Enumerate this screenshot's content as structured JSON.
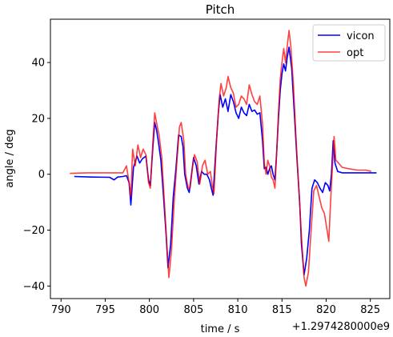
{
  "chart_data": {
    "type": "line",
    "title": "Pitch",
    "xlabel": "time / s",
    "ylabel": "angle / deg",
    "offset_label": "+1.2974280000e9",
    "xlim": [
      788.8,
      827.2
    ],
    "ylim": [
      -44.5,
      55.5
    ],
    "xticks": [
      790,
      795,
      800,
      805,
      810,
      815,
      820,
      825
    ],
    "yticks": [
      -40,
      -20,
      0,
      20,
      40
    ],
    "grid": false,
    "legend_position": "top-right",
    "series": [
      {
        "name": "vicon",
        "color": "#0000ff",
        "points": [
          [
            791.5,
            -0.8
          ],
          [
            793.5,
            -1.0
          ],
          [
            795.5,
            -1.1
          ],
          [
            796.0,
            -2.0
          ],
          [
            796.4,
            -1.0
          ],
          [
            797.0,
            -0.8
          ],
          [
            797.4,
            -0.5
          ],
          [
            797.7,
            -3.0
          ],
          [
            797.9,
            -11.0
          ],
          [
            798.2,
            2.5
          ],
          [
            798.6,
            6.5
          ],
          [
            798.9,
            4.0
          ],
          [
            799.2,
            5.5
          ],
          [
            799.6,
            6.5
          ],
          [
            799.9,
            -2.0
          ],
          [
            800.1,
            -4.0
          ],
          [
            800.4,
            10.0
          ],
          [
            800.6,
            18.5
          ],
          [
            800.8,
            16.0
          ],
          [
            801.0,
            12.0
          ],
          [
            801.3,
            5.0
          ],
          [
            801.6,
            -8.0
          ],
          [
            801.9,
            -22.0
          ],
          [
            802.1,
            -33.5
          ],
          [
            802.4,
            -25.0
          ],
          [
            802.7,
            -8.0
          ],
          [
            803.0,
            2.0
          ],
          [
            803.3,
            14.0
          ],
          [
            803.6,
            13.5
          ],
          [
            803.8,
            10.0
          ],
          [
            804.0,
            0.0
          ],
          [
            804.3,
            -5.0
          ],
          [
            804.5,
            -6.5
          ],
          [
            804.8,
            1.0
          ],
          [
            805.0,
            6.0
          ],
          [
            805.3,
            3.0
          ],
          [
            805.6,
            -3.5
          ],
          [
            805.9,
            1.0
          ],
          [
            806.2,
            0.0
          ],
          [
            806.5,
            0.0
          ],
          [
            806.8,
            -2.0
          ],
          [
            807.0,
            -5.0
          ],
          [
            807.2,
            -7.5
          ],
          [
            807.5,
            8.0
          ],
          [
            807.8,
            22.0
          ],
          [
            808.0,
            28.5
          ],
          [
            808.3,
            24.0
          ],
          [
            808.6,
            27.0
          ],
          [
            808.9,
            22.5
          ],
          [
            809.2,
            28.5
          ],
          [
            809.5,
            26.0
          ],
          [
            809.8,
            22.0
          ],
          [
            810.1,
            20.0
          ],
          [
            810.4,
            24.0
          ],
          [
            810.7,
            22.0
          ],
          [
            811.0,
            21.0
          ],
          [
            811.3,
            25.0
          ],
          [
            811.6,
            22.5
          ],
          [
            811.9,
            23.0
          ],
          [
            812.2,
            21.5
          ],
          [
            812.5,
            22.0
          ],
          [
            812.8,
            12.0
          ],
          [
            813.0,
            2.0
          ],
          [
            813.2,
            2.5
          ],
          [
            813.4,
            0.0
          ],
          [
            813.6,
            2.0
          ],
          [
            813.8,
            3.0
          ],
          [
            814.0,
            0.0
          ],
          [
            814.2,
            -2.0
          ],
          [
            814.4,
            8.0
          ],
          [
            814.6,
            20.0
          ],
          [
            814.8,
            30.0
          ],
          [
            815.0,
            36.0
          ],
          [
            815.2,
            39.5
          ],
          [
            815.4,
            37.0
          ],
          [
            815.6,
            42.0
          ],
          [
            815.8,
            45.5
          ],
          [
            816.1,
            38.0
          ],
          [
            816.4,
            22.0
          ],
          [
            816.7,
            5.0
          ],
          [
            817.0,
            -10.0
          ],
          [
            817.2,
            -25.0
          ],
          [
            817.5,
            -36.0
          ],
          [
            817.8,
            -30.0
          ],
          [
            818.1,
            -20.0
          ],
          [
            818.4,
            -5.0
          ],
          [
            818.7,
            -2.0
          ],
          [
            819.0,
            -3.0
          ],
          [
            819.3,
            -5.0
          ],
          [
            819.6,
            -6.5
          ],
          [
            819.9,
            -3.0
          ],
          [
            820.2,
            -4.0
          ],
          [
            820.4,
            -6.0
          ],
          [
            820.6,
            0.0
          ],
          [
            820.8,
            12.0
          ],
          [
            821.0,
            4.0
          ],
          [
            821.3,
            1.0
          ],
          [
            821.8,
            0.5
          ],
          [
            822.5,
            0.5
          ],
          [
            823.5,
            0.5
          ],
          [
            824.5,
            0.5
          ],
          [
            825.7,
            0.5
          ]
        ]
      },
      {
        "name": "opt",
        "color": "#ff0000",
        "points": [
          [
            791.0,
            0.3
          ],
          [
            793.0,
            0.5
          ],
          [
            795.0,
            0.5
          ],
          [
            796.0,
            0.5
          ],
          [
            797.0,
            0.5
          ],
          [
            797.4,
            3.0
          ],
          [
            797.7,
            -3.0
          ],
          [
            797.9,
            -8.0
          ],
          [
            798.1,
            9.0
          ],
          [
            798.4,
            3.0
          ],
          [
            798.7,
            10.5
          ],
          [
            799.0,
            6.0
          ],
          [
            799.3,
            9.0
          ],
          [
            799.6,
            7.0
          ],
          [
            799.9,
            -3.0
          ],
          [
            800.1,
            -5.0
          ],
          [
            800.4,
            12.0
          ],
          [
            800.6,
            22.0
          ],
          [
            800.9,
            17.0
          ],
          [
            801.1,
            14.0
          ],
          [
            801.4,
            6.0
          ],
          [
            801.7,
            -10.0
          ],
          [
            802.0,
            -27.0
          ],
          [
            802.2,
            -37.0
          ],
          [
            802.5,
            -27.0
          ],
          [
            802.8,
            -10.0
          ],
          [
            803.1,
            4.0
          ],
          [
            803.4,
            17.0
          ],
          [
            803.6,
            18.5
          ],
          [
            803.9,
            12.0
          ],
          [
            804.1,
            0.0
          ],
          [
            804.4,
            -5.0
          ],
          [
            804.6,
            -5.0
          ],
          [
            804.9,
            3.0
          ],
          [
            805.1,
            7.0
          ],
          [
            805.4,
            4.5
          ],
          [
            805.7,
            -3.5
          ],
          [
            806.0,
            3.0
          ],
          [
            806.3,
            5.0
          ],
          [
            806.6,
            0.0
          ],
          [
            806.9,
            1.0
          ],
          [
            807.1,
            -4.0
          ],
          [
            807.3,
            -7.0
          ],
          [
            807.6,
            12.0
          ],
          [
            807.9,
            27.0
          ],
          [
            808.1,
            32.5
          ],
          [
            808.4,
            28.0
          ],
          [
            808.7,
            31.0
          ],
          [
            808.9,
            35.0
          ],
          [
            809.2,
            31.0
          ],
          [
            809.5,
            29.0
          ],
          [
            809.8,
            24.0
          ],
          [
            810.1,
            25.0
          ],
          [
            810.4,
            28.0
          ],
          [
            810.7,
            27.0
          ],
          [
            811.0,
            25.0
          ],
          [
            811.3,
            32.0
          ],
          [
            811.6,
            28.5
          ],
          [
            811.9,
            26.0
          ],
          [
            812.2,
            25.0
          ],
          [
            812.5,
            28.0
          ],
          [
            812.8,
            18.0
          ],
          [
            813.0,
            4.0
          ],
          [
            813.2,
            0.0
          ],
          [
            813.4,
            5.0
          ],
          [
            813.6,
            3.0
          ],
          [
            813.8,
            -1.0
          ],
          [
            814.0,
            -2.0
          ],
          [
            814.2,
            -5.0
          ],
          [
            814.4,
            8.0
          ],
          [
            814.6,
            22.0
          ],
          [
            814.8,
            34.0
          ],
          [
            815.0,
            40.0
          ],
          [
            815.2,
            45.0
          ],
          [
            815.4,
            40.0
          ],
          [
            815.6,
            46.0
          ],
          [
            815.8,
            51.5
          ],
          [
            816.0,
            46.0
          ],
          [
            816.3,
            32.0
          ],
          [
            816.6,
            12.0
          ],
          [
            816.9,
            -5.0
          ],
          [
            817.2,
            -22.0
          ],
          [
            817.5,
            -37.0
          ],
          [
            817.7,
            -40.0
          ],
          [
            818.0,
            -35.0
          ],
          [
            818.3,
            -20.0
          ],
          [
            818.6,
            -6.0
          ],
          [
            818.9,
            -4.0
          ],
          [
            819.2,
            -8.0
          ],
          [
            819.5,
            -12.0
          ],
          [
            819.8,
            -14.0
          ],
          [
            820.1,
            -20.0
          ],
          [
            820.3,
            -24.0
          ],
          [
            820.5,
            -10.0
          ],
          [
            820.7,
            2.0
          ],
          [
            820.9,
            13.5
          ],
          [
            821.1,
            5.0
          ],
          [
            821.4,
            4.0
          ],
          [
            821.8,
            2.5
          ],
          [
            822.5,
            2.0
          ],
          [
            823.5,
            1.5
          ],
          [
            824.5,
            1.5
          ],
          [
            825.1,
            1.0
          ]
        ]
      }
    ]
  }
}
